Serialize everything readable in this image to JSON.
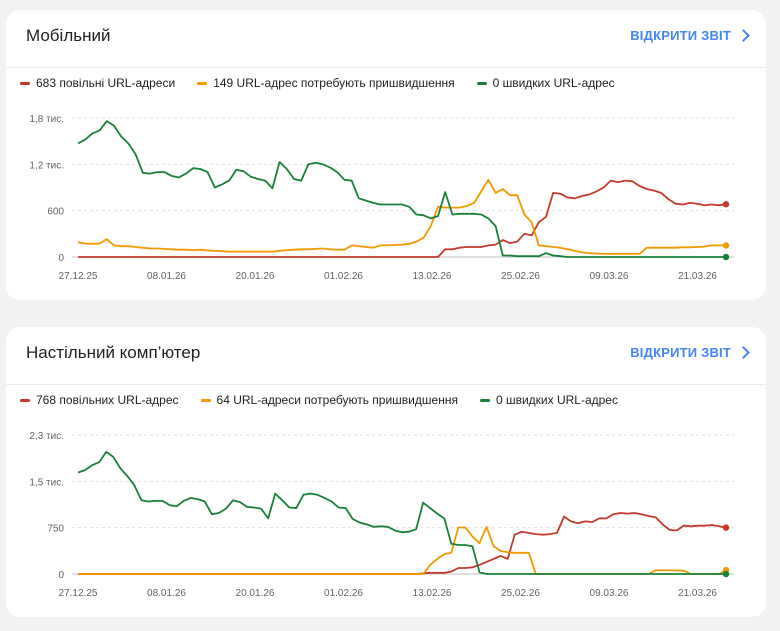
{
  "colors": {
    "slow": "#c5392b",
    "needs": "#f29900",
    "fast": "#188038",
    "grid": "#e0e0e0",
    "axis": "#9aa0a6",
    "link": "#4285f4"
  },
  "x_labels": [
    "27.12.25",
    "08.01.26",
    "20.01.26",
    "01.02.26",
    "13.02.26",
    "25.02.26",
    "09.03.26",
    "21.03.26"
  ],
  "cards": [
    {
      "title": "Мобільний",
      "link_label": "ВІДКРИТИ ЗВІТ",
      "legend": [
        {
          "label": "683 повільні URL-адреси",
          "color": "#c5392b"
        },
        {
          "label": "149 URL-адрес потребують пришвидшення",
          "color": "#f29900"
        },
        {
          "label": "0 швидких URL-адрес",
          "color": "#188038"
        }
      ]
    },
    {
      "title": "Настільний комп’ютер",
      "link_label": "ВІДКРИТИ ЗВІТ",
      "legend": [
        {
          "label": "768 повільних URL-адрес",
          "color": "#c5392b"
        },
        {
          "label": "64 URL-адреси потребують пришвидшення",
          "color": "#f29900"
        },
        {
          "label": "0 швидких URL-адрес",
          "color": "#188038"
        }
      ]
    }
  ],
  "chart_data": [
    {
      "type": "line",
      "title": "Мобільний",
      "x_start": "27.12.25",
      "x_end": "27.03.26",
      "x_ticks": [
        "27.12.25",
        "08.01.26",
        "20.01.26",
        "01.02.26",
        "13.02.26",
        "25.02.26",
        "09.03.26",
        "21.03.26"
      ],
      "y_ticks": [
        "0",
        "600",
        "1,2 тис.",
        "1,8 тис."
      ],
      "ylim": [
        0,
        1800
      ],
      "grid": true,
      "legend_position": "top",
      "series": [
        {
          "name": "683 повільні URL-адреси",
          "color": "#c5392b",
          "values": [
            0,
            0,
            0,
            0,
            0,
            0,
            0,
            0,
            0,
            0,
            0,
            0,
            0,
            0,
            0,
            0,
            0,
            0,
            0,
            0,
            0,
            0,
            0,
            0,
            0,
            0,
            0,
            0,
            0,
            0,
            0,
            0,
            0,
            0,
            0,
            0,
            0,
            0,
            0,
            0,
            0,
            0,
            0,
            0,
            0,
            0,
            0,
            0,
            0,
            0,
            0,
            100,
            100,
            120,
            130,
            130,
            130,
            150,
            160,
            220,
            180,
            200,
            300,
            280,
            450,
            520,
            830,
            820,
            770,
            760,
            790,
            810,
            850,
            900,
            990,
            970,
            990,
            980,
            920,
            880,
            860,
            830,
            750,
            690,
            680,
            700,
            690,
            670,
            680,
            670,
            683
          ]
        },
        {
          "name": "149 URL-адрес потребують пришвидшення",
          "color": "#f29900",
          "values": [
            190,
            175,
            170,
            175,
            230,
            150,
            140,
            140,
            130,
            120,
            110,
            110,
            105,
            100,
            95,
            95,
            90,
            95,
            85,
            80,
            75,
            70,
            70,
            70,
            70,
            70,
            70,
            70,
            80,
            90,
            95,
            100,
            100,
            105,
            110,
            100,
            95,
            95,
            150,
            140,
            130,
            120,
            150,
            150,
            155,
            160,
            170,
            200,
            250,
            400,
            650,
            640,
            640,
            640,
            660,
            700,
            850,
            1000,
            830,
            880,
            800,
            800,
            550,
            450,
            150,
            140,
            130,
            120,
            100,
            80,
            60,
            50,
            45,
            40,
            40,
            40,
            40,
            40,
            40,
            120,
            120,
            120,
            120,
            120,
            125,
            125,
            130,
            135,
            150,
            150,
            149
          ]
        },
        {
          "name": "0 швидких URL-адрес",
          "color": "#188038",
          "values": [
            1470,
            1520,
            1600,
            1640,
            1760,
            1700,
            1560,
            1470,
            1330,
            1090,
            1080,
            1100,
            1100,
            1050,
            1030,
            1080,
            1150,
            1140,
            1100,
            900,
            940,
            990,
            1130,
            1110,
            1040,
            1010,
            990,
            890,
            1230,
            1140,
            1010,
            990,
            1200,
            1220,
            1200,
            1160,
            1100,
            1000,
            990,
            760,
            730,
            700,
            680,
            680,
            680,
            680,
            650,
            550,
            540,
            500,
            530,
            840,
            550,
            560,
            560,
            560,
            550,
            500,
            400,
            20,
            20,
            10,
            10,
            10,
            10,
            50,
            20,
            10,
            0,
            0,
            0,
            0,
            0,
            0,
            0,
            0,
            0,
            0,
            0,
            0,
            0,
            0,
            0,
            0,
            0,
            0,
            0,
            0,
            0,
            0,
            0
          ]
        }
      ]
    },
    {
      "type": "line",
      "title": "Настільний комп’ютер",
      "x_start": "27.12.25",
      "x_end": "27.03.26",
      "x_ticks": [
        "27.12.25",
        "08.01.26",
        "20.01.26",
        "01.02.26",
        "13.02.26",
        "25.02.26",
        "09.03.26",
        "21.03.26"
      ],
      "y_ticks": [
        "0",
        "750",
        "1,5 тис.",
        "2,3 тис."
      ],
      "ylim": [
        0,
        2300
      ],
      "grid": true,
      "legend_position": "top",
      "series": [
        {
          "name": "768 повільних URL-адрес",
          "color": "#c5392b",
          "values": [
            0,
            0,
            0,
            0,
            0,
            0,
            0,
            0,
            0,
            0,
            0,
            0,
            0,
            0,
            0,
            0,
            0,
            0,
            0,
            0,
            0,
            0,
            0,
            0,
            0,
            0,
            0,
            0,
            0,
            0,
            0,
            0,
            0,
            0,
            0,
            0,
            0,
            0,
            0,
            0,
            0,
            0,
            0,
            0,
            0,
            0,
            0,
            0,
            0,
            10,
            20,
            20,
            20,
            40,
            100,
            100,
            110,
            150,
            200,
            250,
            300,
            250,
            650,
            700,
            680,
            660,
            650,
            660,
            680,
            950,
            870,
            840,
            870,
            860,
            920,
            920,
            990,
            1010,
            1000,
            1010,
            990,
            960,
            940,
            820,
            730,
            720,
            800,
            790,
            800,
            800,
            810,
            790,
            768
          ]
        },
        {
          "name": "64 URL-адреси потребують пришвидшення",
          "color": "#f29900",
          "values": [
            0,
            0,
            0,
            0,
            0,
            0,
            0,
            0,
            0,
            0,
            0,
            0,
            0,
            0,
            0,
            0,
            0,
            0,
            0,
            0,
            0,
            0,
            0,
            0,
            0,
            0,
            0,
            0,
            0,
            0,
            0,
            0,
            0,
            0,
            0,
            0,
            0,
            0,
            0,
            0,
            0,
            0,
            0,
            0,
            0,
            0,
            0,
            0,
            0,
            0,
            150,
            250,
            330,
            350,
            770,
            770,
            620,
            510,
            780,
            460,
            380,
            360,
            350,
            350,
            350,
            0,
            0,
            0,
            0,
            0,
            0,
            0,
            0,
            0,
            0,
            0,
            0,
            0,
            0,
            0,
            0,
            0,
            60,
            60,
            60,
            60,
            55,
            0,
            0,
            0,
            0,
            0,
            64
          ]
        },
        {
          "name": "0 швидких URL-адрес",
          "color": "#188038",
          "values": [
            1680,
            1720,
            1800,
            1850,
            2020,
            1940,
            1750,
            1620,
            1470,
            1220,
            1200,
            1210,
            1210,
            1140,
            1120,
            1210,
            1260,
            1240,
            1200,
            990,
            1010,
            1080,
            1220,
            1190,
            1110,
            1100,
            1080,
            920,
            1330,
            1220,
            1100,
            1090,
            1310,
            1330,
            1310,
            1260,
            1200,
            1100,
            1090,
            910,
            850,
            820,
            780,
            790,
            780,
            720,
            690,
            700,
            740,
            1180,
            1090,
            1000,
            920,
            500,
            480,
            480,
            460,
            30,
            0,
            0,
            0,
            0,
            0,
            0,
            0,
            0,
            0,
            0,
            0,
            0,
            0,
            0,
            0,
            0,
            0,
            0,
            0,
            0,
            0,
            0,
            0,
            0,
            0,
            0,
            0,
            0,
            0,
            0,
            0,
            0,
            0,
            0,
            0
          ]
        }
      ]
    }
  ]
}
